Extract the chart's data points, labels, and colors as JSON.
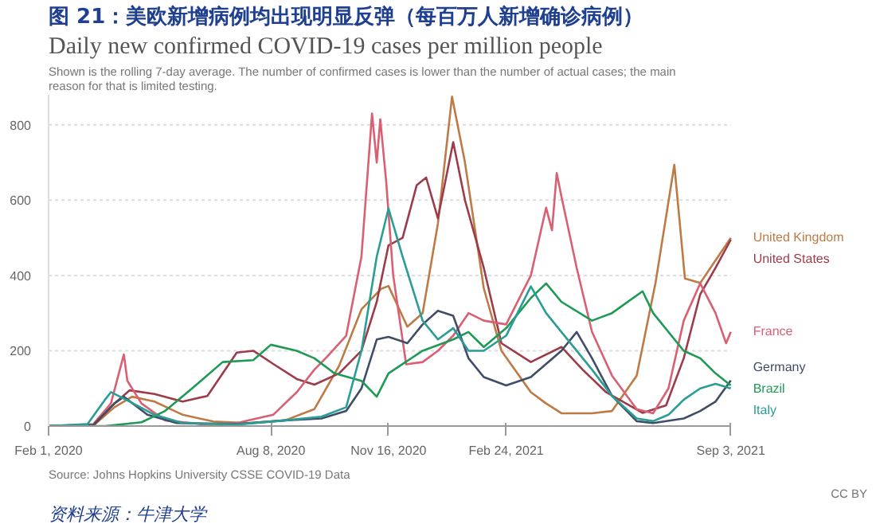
{
  "chart_data": {
    "type": "line",
    "title": "图 21：美欧新增病例均出现明显反弹（每百万人新增确诊病例）",
    "subtitle": "Daily new confirmed COVID-19 cases per million people",
    "annotations": [
      "Shown is the rolling 7-day average. The number of confirmed cases is lower than the number of actual cases; the main reason for that is limited testing.",
      "Source: Johns Hopkins University CSSE COVID-19 Data",
      "CC BY",
      "资料来源：牛津大学"
    ],
    "xlim": [
      "2020-02-01",
      "2021-09-03"
    ],
    "xticks": [
      {
        "value": "2020-02-01",
        "label": "Feb 1, 2020"
      },
      {
        "value": "2020-08-08",
        "label": "Aug 8, 2020"
      },
      {
        "value": "2020-11-16",
        "label": "Nov 16, 2020"
      },
      {
        "value": "2021-02-24",
        "label": "Feb 24, 2021"
      },
      {
        "value": "2021-09-03",
        "label": "Sep 3, 2021"
      }
    ],
    "ylim": [
      0,
      880
    ],
    "yticks": [
      0,
      200,
      400,
      600,
      800
    ],
    "grid": "y",
    "line_style": "solid",
    "series": [
      {
        "name": "United Kingdom",
        "color": "#bd7a45",
        "x": [
          "2020-02-01",
          "2020-03-10",
          "2020-03-28",
          "2020-04-12",
          "2020-05-01",
          "2020-05-25",
          "2020-06-20",
          "2020-07-20",
          "2020-08-20",
          "2020-09-14",
          "2020-10-05",
          "2020-10-24",
          "2020-11-10",
          "2020-11-16",
          "2020-12-02",
          "2020-12-15",
          "2020-12-28",
          "2021-01-09",
          "2021-01-20",
          "2021-02-05",
          "2021-02-20",
          "2021-03-17",
          "2021-03-30",
          "2021-04-12",
          "2021-05-08",
          "2021-05-25",
          "2021-06-15",
          "2021-07-01",
          "2021-07-17",
          "2021-07-26",
          "2021-08-08",
          "2021-08-21",
          "2021-09-03"
        ],
        "values": [
          0,
          1,
          50,
          78,
          65,
          30,
          12,
          8,
          15,
          45,
          160,
          310,
          365,
          372,
          264,
          300,
          538,
          875,
          700,
          366,
          200,
          90,
          60,
          34,
          34,
          40,
          134,
          380,
          694,
          392,
          380,
          440,
          500
        ]
      },
      {
        "name": "United States",
        "color": "#9e3b4a",
        "x": [
          "2020-02-01",
          "2020-03-10",
          "2020-03-28",
          "2020-04-10",
          "2020-05-01",
          "2020-05-25",
          "2020-06-15",
          "2020-07-10",
          "2020-07-24",
          "2020-08-10",
          "2020-08-30",
          "2020-09-14",
          "2020-10-05",
          "2020-10-24",
          "2020-11-06",
          "2020-11-16",
          "2020-11-28",
          "2020-12-10",
          "2020-12-18",
          "2020-12-28",
          "2021-01-10",
          "2021-01-20",
          "2021-02-05",
          "2021-02-20",
          "2021-03-17",
          "2021-04-12",
          "2021-04-30",
          "2021-05-20",
          "2021-06-20",
          "2021-07-10",
          "2021-07-25",
          "2021-08-08",
          "2021-08-21",
          "2021-09-03"
        ],
        "values": [
          0,
          1,
          60,
          95,
          85,
          65,
          80,
          195,
          200,
          165,
          125,
          110,
          140,
          200,
          330,
          480,
          500,
          640,
          660,
          552,
          754,
          600,
          420,
          220,
          170,
          210,
          150,
          90,
          35,
          55,
          180,
          350,
          420,
          495
        ]
      },
      {
        "name": "France",
        "color": "#d95f72",
        "x": [
          "2020-02-01",
          "2020-03-10",
          "2020-03-25",
          "2020-04-05",
          "2020-04-08",
          "2020-04-20",
          "2020-05-10",
          "2020-06-10",
          "2020-07-10",
          "2020-08-10",
          "2020-08-30",
          "2020-09-14",
          "2020-09-25",
          "2020-10-11",
          "2020-10-24",
          "2020-11-02",
          "2020-11-06",
          "2020-11-09",
          "2020-11-14",
          "2020-11-20",
          "2020-12-01",
          "2020-12-15",
          "2020-12-28",
          "2021-01-10",
          "2021-01-23",
          "2021-02-05",
          "2021-02-24",
          "2021-03-17",
          "2021-03-30",
          "2021-04-04",
          "2021-04-08",
          "2021-04-12",
          "2021-04-25",
          "2021-05-08",
          "2021-05-25",
          "2021-06-15",
          "2021-06-29",
          "2021-07-12",
          "2021-07-25",
          "2021-08-08",
          "2021-08-21",
          "2021-08-30",
          "2021-09-03"
        ],
        "values": [
          0,
          5,
          60,
          190,
          120,
          60,
          15,
          5,
          8,
          30,
          90,
          150,
          185,
          240,
          450,
          830,
          700,
          815,
          650,
          400,
          164,
          170,
          200,
          240,
          300,
          280,
          270,
          400,
          580,
          520,
          672,
          610,
          420,
          250,
          134,
          45,
          34,
          100,
          280,
          379,
          300,
          220,
          250
        ]
      },
      {
        "name": "Germany",
        "color": "#3f4d66",
        "x": [
          "2020-02-01",
          "2020-03-10",
          "2020-03-28",
          "2020-04-05",
          "2020-04-25",
          "2020-05-20",
          "2020-07-10",
          "2020-08-20",
          "2020-09-20",
          "2020-10-11",
          "2020-10-24",
          "2020-11-06",
          "2020-11-16",
          "2020-12-02",
          "2020-12-15",
          "2020-12-28",
          "2021-01-10",
          "2021-01-23",
          "2021-02-05",
          "2021-02-24",
          "2021-03-17",
          "2021-04-12",
          "2021-04-25",
          "2021-05-08",
          "2021-05-25",
          "2021-06-15",
          "2021-06-29",
          "2021-07-25",
          "2021-08-08",
          "2021-08-21",
          "2021-09-03"
        ],
        "values": [
          0,
          3,
          60,
          78,
          30,
          8,
          5,
          15,
          20,
          40,
          100,
          230,
          237,
          220,
          270,
          306,
          293,
          180,
          130,
          108,
          130,
          200,
          250,
          180,
          80,
          13,
          8,
          20,
          40,
          65,
          121
        ]
      },
      {
        "name": "Brazil",
        "color": "#1f9a55",
        "x": [
          "2020-02-01",
          "2020-03-20",
          "2020-04-20",
          "2020-05-10",
          "2020-06-02",
          "2020-06-28",
          "2020-07-24",
          "2020-08-08",
          "2020-08-30",
          "2020-09-14",
          "2020-10-01",
          "2020-10-24",
          "2020-11-06",
          "2020-11-16",
          "2020-12-15",
          "2021-01-10",
          "2021-01-23",
          "2021-02-05",
          "2021-02-24",
          "2021-03-17",
          "2021-03-30",
          "2021-04-12",
          "2021-05-08",
          "2021-05-25",
          "2021-06-20",
          "2021-06-29",
          "2021-07-25",
          "2021-08-08",
          "2021-08-21",
          "2021-09-03"
        ],
        "values": [
          0,
          0,
          10,
          40,
          100,
          170,
          175,
          216,
          200,
          180,
          140,
          120,
          78,
          140,
          200,
          230,
          250,
          210,
          260,
          340,
          379,
          330,
          280,
          300,
          358,
          300,
          200,
          180,
          140,
          108
        ]
      },
      {
        "name": "Italy",
        "color": "#2a9d95",
        "x": [
          "2020-02-01",
          "2020-03-05",
          "2020-03-20",
          "2020-03-25",
          "2020-04-10",
          "2020-05-01",
          "2020-05-25",
          "2020-07-10",
          "2020-08-20",
          "2020-09-20",
          "2020-10-11",
          "2020-10-24",
          "2020-11-06",
          "2020-11-16",
          "2020-11-28",
          "2020-12-15",
          "2020-12-28",
          "2021-01-10",
          "2021-01-23",
          "2021-02-05",
          "2021-02-24",
          "2021-03-17",
          "2021-03-30",
          "2021-04-12",
          "2021-05-08",
          "2021-05-25",
          "2021-06-15",
          "2021-06-29",
          "2021-07-12",
          "2021-07-25",
          "2021-08-08",
          "2021-08-21",
          "2021-09-03"
        ],
        "values": [
          0,
          5,
          70,
          90,
          65,
          30,
          8,
          4,
          15,
          25,
          50,
          200,
          450,
          578,
          450,
          280,
          230,
          260,
          200,
          200,
          240,
          371,
          300,
          250,
          150,
          80,
          20,
          13,
          30,
          70,
          100,
          112,
          100
        ]
      }
    ]
  }
}
